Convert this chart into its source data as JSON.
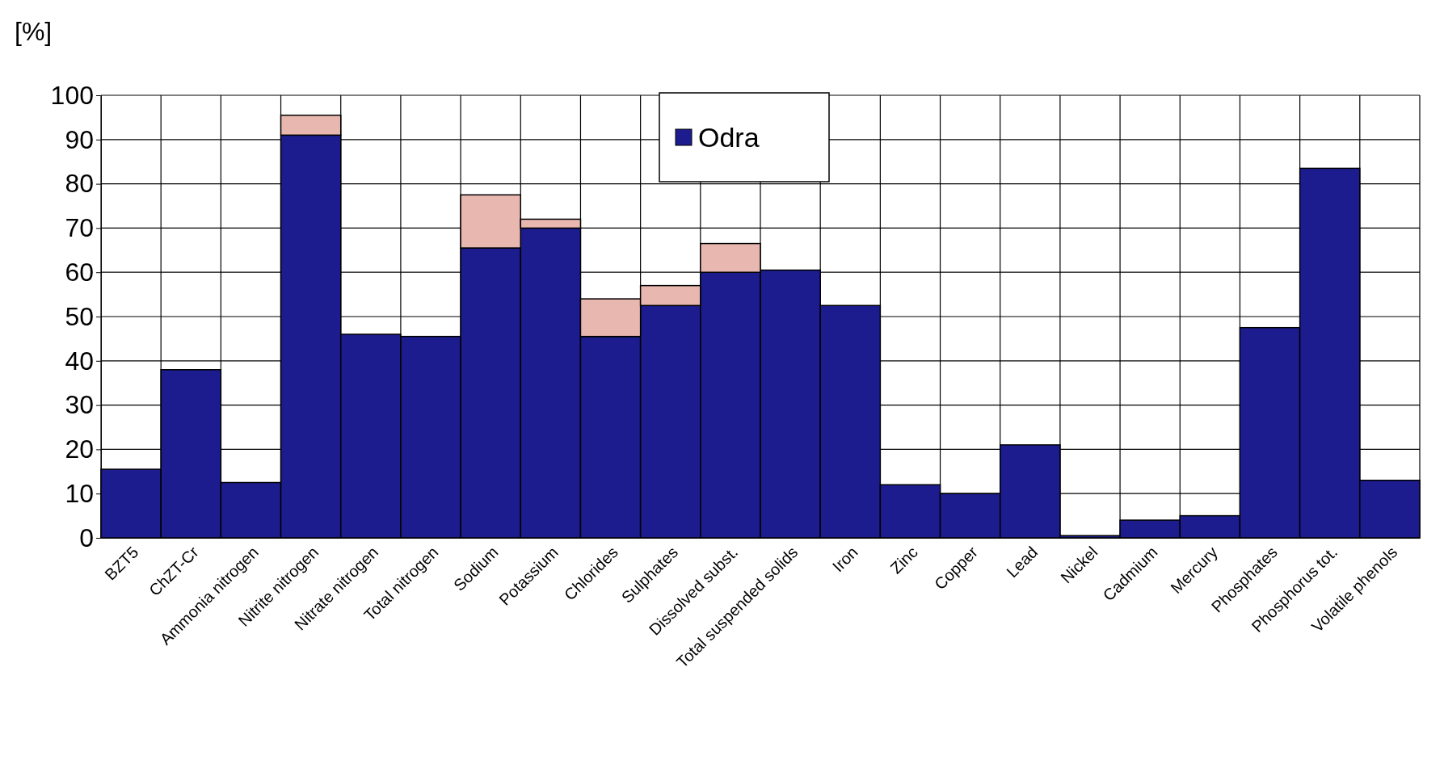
{
  "chart_data": {
    "type": "bar",
    "stacked": true,
    "ylabel": "[%]",
    "categories": [
      "BZT5",
      "ChZT-Cr",
      "Ammonia nitrogen",
      "Nitrite nitrogen",
      "Nitrate nitrogen",
      "Total nitrogen",
      "Sodium",
      "Potassium",
      "Chlorides",
      "Sulphates",
      "Dissolved subst.",
      "Total suspended solids",
      "Iron",
      "Zinc",
      "Copper",
      "Lead",
      "Nickel",
      "Cadmium",
      "Mercury",
      "Phosphates",
      "Phosphorus tot.",
      "Volatile phenols"
    ],
    "series": [
      {
        "name": "Odra",
        "color": "#1c1c8e",
        "values": [
          15.5,
          38,
          12.5,
          91,
          46,
          45.5,
          65.5,
          70,
          45.5,
          52.5,
          60,
          60.5,
          52.5,
          12,
          10,
          21,
          0.5,
          4,
          5,
          47.5,
          83.5,
          13
        ]
      },
      {
        "color": "#e8b8b0",
        "values": [
          null,
          null,
          null,
          4.5,
          null,
          null,
          12,
          2,
          8.5,
          4.5,
          6.5,
          null,
          null,
          null,
          null,
          null,
          null,
          null,
          null,
          null,
          null,
          null
        ]
      }
    ],
    "ylim": [
      0,
      100
    ],
    "yticks": [
      0,
      10,
      20,
      30,
      40,
      50,
      60,
      70,
      80,
      90,
      100
    ],
    "grid": true,
    "legend": "top"
  }
}
